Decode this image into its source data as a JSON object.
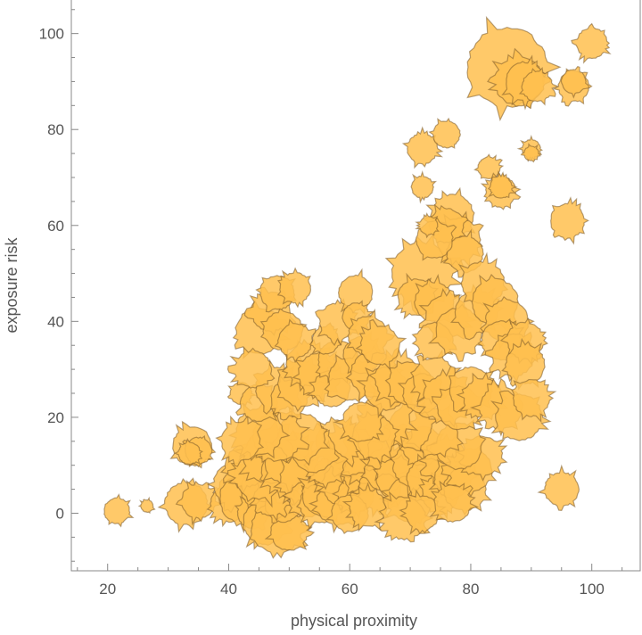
{
  "chart_data": {
    "type": "scatter",
    "title": "",
    "xlabel": "physical proximity",
    "ylabel": "exposure risk",
    "xlim": [
      14,
      108
    ],
    "ylim": [
      -12,
      107
    ],
    "xticks": [
      "20",
      "40",
      "60",
      "80",
      "100"
    ],
    "yticks": [
      "0",
      "20",
      "40",
      "60",
      "80",
      "100"
    ],
    "grid": false,
    "legend": "none",
    "marker": "spiky-disk",
    "colors": {
      "fill": "#ffbf4f",
      "stroke": "#7a5a2a",
      "axis": "#888888",
      "text": "#555555"
    },
    "points": [
      [
        21.5,
        0.5,
        2.1
      ],
      [
        26.5,
        1.5,
        1.0
      ],
      [
        33,
        2,
        3.5
      ],
      [
        35,
        2.5,
        2.8
      ],
      [
        34,
        14,
        3.2
      ],
      [
        35,
        13,
        2.2
      ],
      [
        33.5,
        12.5,
        1.8
      ],
      [
        40,
        2,
        3.0
      ],
      [
        41,
        6,
        3.5
      ],
      [
        42.5,
        3,
        4.0
      ],
      [
        44,
        0,
        2.5
      ],
      [
        45,
        5,
        3.0
      ],
      [
        46,
        -2,
        3.6
      ],
      [
        48,
        -3,
        4.2
      ],
      [
        50,
        -4,
        3.0
      ],
      [
        49,
        2,
        3.0
      ],
      [
        47,
        3,
        2.8
      ],
      [
        43,
        10,
        3.5
      ],
      [
        45,
        8,
        4.0
      ],
      [
        47,
        12,
        4.5
      ],
      [
        49,
        9,
        3.5
      ],
      [
        50,
        11,
        4.0
      ],
      [
        52,
        7,
        3.5
      ],
      [
        53,
        3,
        3.0
      ],
      [
        55,
        2,
        3.2
      ],
      [
        56,
        4,
        3.8
      ],
      [
        58,
        2,
        3.5
      ],
      [
        57,
        8,
        3.0
      ],
      [
        59,
        6,
        3.5
      ],
      [
        61,
        4,
        3.0
      ],
      [
        62,
        8,
        3.0
      ],
      [
        63,
        11,
        3.8
      ],
      [
        60,
        13,
        4.0
      ],
      [
        58,
        15,
        3.5
      ],
      [
        56,
        10,
        3.0
      ],
      [
        54,
        13,
        3.5
      ],
      [
        52,
        16,
        3.8
      ],
      [
        48,
        16,
        4.0
      ],
      [
        45,
        17,
        3.8
      ],
      [
        42,
        15,
        3.2
      ],
      [
        65,
        5,
        3.5
      ],
      [
        66,
        9,
        3.5
      ],
      [
        67,
        13,
        4.0
      ],
      [
        68,
        7,
        3.5
      ],
      [
        70,
        3,
        3.8
      ],
      [
        71,
        10,
        3.8
      ],
      [
        72,
        14,
        3.2
      ],
      [
        73,
        7,
        3.5
      ],
      [
        75,
        4,
        3.0
      ],
      [
        76,
        11,
        3.5
      ],
      [
        77,
        7,
        3.0
      ],
      [
        79,
        5,
        3.5
      ],
      [
        80,
        9,
        3.5
      ],
      [
        82,
        12,
        3.2
      ],
      [
        78,
        14,
        3.8
      ],
      [
        74,
        17,
        3.8
      ],
      [
        70,
        18,
        3.5
      ],
      [
        66,
        20,
        4.0
      ],
      [
        64,
        16,
        3.5
      ],
      [
        62,
        19,
        3.2
      ],
      [
        60,
        0,
        3.0
      ],
      [
        63,
        1,
        3.0
      ],
      [
        69,
        -1,
        3.5
      ],
      [
        72,
        0,
        2.8
      ],
      [
        77,
        2,
        3.0
      ],
      [
        42,
        25,
        1.8
      ],
      [
        45,
        23,
        3.0
      ],
      [
        48,
        26,
        3.5
      ],
      [
        50,
        24,
        3.0
      ],
      [
        52,
        27,
        3.8
      ],
      [
        53,
        31,
        3.5
      ],
      [
        55,
        29,
        3.5
      ],
      [
        57,
        26,
        3.0
      ],
      [
        58,
        32,
        3.2
      ],
      [
        60,
        28,
        3.5
      ],
      [
        62,
        33,
        3.0
      ],
      [
        64,
        29,
        3.8
      ],
      [
        66,
        26,
        3.5
      ],
      [
        68,
        28,
        3.8
      ],
      [
        70,
        27,
        3.5
      ],
      [
        72,
        25,
        3.2
      ],
      [
        74,
        28,
        3.5
      ],
      [
        76,
        24,
        3.8
      ],
      [
        78,
        22,
        3.5
      ],
      [
        80,
        26,
        3.5
      ],
      [
        82,
        24,
        3.2
      ],
      [
        85,
        22,
        3.5
      ],
      [
        45,
        38,
        3.8
      ],
      [
        47,
        42,
        3.2
      ],
      [
        49,
        38,
        3.2
      ],
      [
        51,
        36,
        2.8
      ],
      [
        44,
        30,
        3.0
      ],
      [
        48,
        46,
        2.8
      ],
      [
        51,
        47,
        2.5
      ],
      [
        56,
        36,
        2.2
      ],
      [
        58,
        40,
        3.0
      ],
      [
        61,
        46,
        2.8
      ],
      [
        61,
        41,
        2.2
      ],
      [
        63,
        37,
        3.2
      ],
      [
        65,
        35,
        3.2
      ],
      [
        72,
        50,
        5.0
      ],
      [
        71,
        45,
        3.0
      ],
      [
        74,
        44,
        3.2
      ],
      [
        76,
        41,
        3.5
      ],
      [
        74,
        36,
        3.0
      ],
      [
        77,
        62,
        3.5
      ],
      [
        78,
        57,
        3.5
      ],
      [
        76,
        60,
        2.8
      ],
      [
        79,
        54,
        3.0
      ],
      [
        74,
        57,
        3.0
      ],
      [
        78,
        38,
        3.8
      ],
      [
        81,
        42,
        3.5
      ],
      [
        82,
        48,
        3.5
      ],
      [
        84,
        44,
        3.8
      ],
      [
        86,
        40,
        3.5
      ],
      [
        85,
        36,
        3.2
      ],
      [
        87,
        33,
        3.5
      ],
      [
        89,
        36,
        3.0
      ],
      [
        89,
        31,
        3.2
      ],
      [
        88,
        20,
        3.8
      ],
      [
        90,
        24,
        3.0
      ],
      [
        72,
        76,
        2.5
      ],
      [
        76,
        79,
        2.2
      ],
      [
        72,
        68,
        1.8
      ],
      [
        73,
        60,
        1.5
      ],
      [
        83,
        72,
        1.8
      ],
      [
        85,
        67,
        2.5
      ],
      [
        85,
        68,
        1.8
      ],
      [
        90,
        76,
        1.5
      ],
      [
        90,
        75,
        1.2
      ],
      [
        96,
        61,
        2.8
      ],
      [
        95,
        5,
        2.8
      ],
      [
        86,
        93,
        6.5
      ],
      [
        88,
        90,
        4.0
      ],
      [
        89,
        90,
        3.2
      ],
      [
        91,
        89,
        2.5
      ],
      [
        97,
        89,
        2.5
      ],
      [
        97,
        90,
        2.0
      ],
      [
        100,
        98,
        2.5
      ]
    ]
  }
}
